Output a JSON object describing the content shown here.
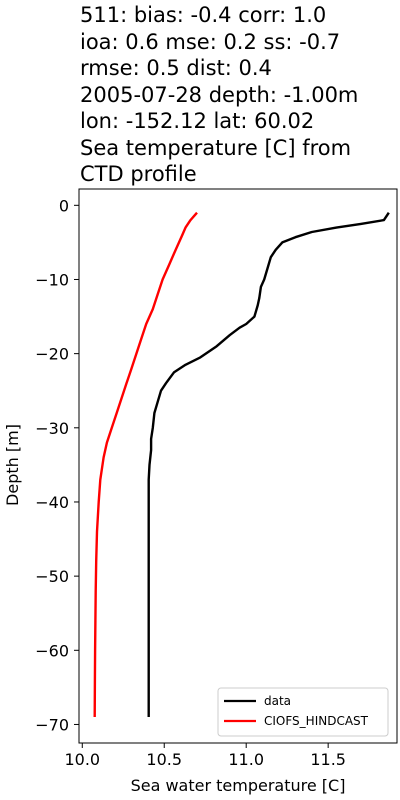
{
  "chart_data": {
    "type": "line",
    "title_lines": [
      "511: bias: -0.4  corr: 1.0",
      "ioa: 0.6  mse: 0.2  ss: -0.7",
      "rmse: 0.5  dist: 0.4",
      "2005-07-28 depth: -1.00m",
      "lon: -152.12 lat: 60.02",
      "Sea temperature [C] from",
      "CTD profile"
    ],
    "xlabel": "Sea water temperature [C]",
    "ylabel": "Depth [m]",
    "xlim": [
      9.98,
      11.92
    ],
    "ylim": [
      -72.5,
      2.2
    ],
    "xticks": [
      10.0,
      10.5,
      11.0,
      11.5
    ],
    "xtick_labels": [
      "10.0",
      "10.5",
      "11.0",
      "11.5"
    ],
    "yticks": [
      0,
      -10,
      -20,
      -30,
      -40,
      -50,
      -60,
      -70
    ],
    "ytick_labels": [
      "0",
      "−10",
      "−20",
      "−30",
      "−40",
      "−50",
      "−60",
      "−70"
    ],
    "legend_position": "lower right",
    "series": [
      {
        "name": "data",
        "color": "#000000",
        "points": [
          [
            11.87,
            -1
          ],
          [
            11.84,
            -2
          ],
          [
            11.7,
            -2.5
          ],
          [
            11.55,
            -3
          ],
          [
            11.4,
            -3.6
          ],
          [
            11.3,
            -4.3
          ],
          [
            11.22,
            -5
          ],
          [
            11.18,
            -6
          ],
          [
            11.15,
            -7
          ],
          [
            11.13,
            -8.5
          ],
          [
            11.11,
            -10
          ],
          [
            11.09,
            -11
          ],
          [
            11.08,
            -12.5
          ],
          [
            11.07,
            -13.5
          ],
          [
            11.05,
            -15
          ],
          [
            11.0,
            -16
          ],
          [
            10.96,
            -16.5
          ],
          [
            10.9,
            -17.5
          ],
          [
            10.82,
            -19
          ],
          [
            10.72,
            -20.5
          ],
          [
            10.63,
            -21.5
          ],
          [
            10.56,
            -22.5
          ],
          [
            10.51,
            -24
          ],
          [
            10.48,
            -25
          ],
          [
            10.46,
            -26.5
          ],
          [
            10.44,
            -28
          ],
          [
            10.43,
            -30
          ],
          [
            10.42,
            -31.5
          ],
          [
            10.42,
            -33
          ],
          [
            10.41,
            -35
          ],
          [
            10.405,
            -37
          ],
          [
            10.405,
            -40
          ],
          [
            10.405,
            -45
          ],
          [
            10.405,
            -50
          ],
          [
            10.405,
            -55
          ],
          [
            10.405,
            -60
          ],
          [
            10.405,
            -65
          ],
          [
            10.405,
            -69
          ]
        ]
      },
      {
        "name": "CIOFS_HINDCAST",
        "color": "#ff0000",
        "points": [
          [
            10.7,
            -1
          ],
          [
            10.68,
            -1.5
          ],
          [
            10.66,
            -2
          ],
          [
            10.63,
            -3
          ],
          [
            10.61,
            -4
          ],
          [
            10.59,
            -5
          ],
          [
            10.57,
            -6
          ],
          [
            10.55,
            -7
          ],
          [
            10.53,
            -8
          ],
          [
            10.49,
            -10
          ],
          [
            10.46,
            -12
          ],
          [
            10.43,
            -14
          ],
          [
            10.39,
            -16
          ],
          [
            10.36,
            -18
          ],
          [
            10.33,
            -20
          ],
          [
            10.3,
            -22
          ],
          [
            10.27,
            -24
          ],
          [
            10.24,
            -26
          ],
          [
            10.21,
            -28
          ],
          [
            10.18,
            -30
          ],
          [
            10.15,
            -32
          ],
          [
            10.13,
            -34
          ],
          [
            10.11,
            -37
          ],
          [
            10.1,
            -40
          ],
          [
            10.09,
            -44
          ],
          [
            10.085,
            -48
          ],
          [
            10.082,
            -52
          ],
          [
            10.08,
            -56
          ],
          [
            10.078,
            -60
          ],
          [
            10.077,
            -64
          ],
          [
            10.076,
            -69
          ]
        ]
      }
    ]
  }
}
